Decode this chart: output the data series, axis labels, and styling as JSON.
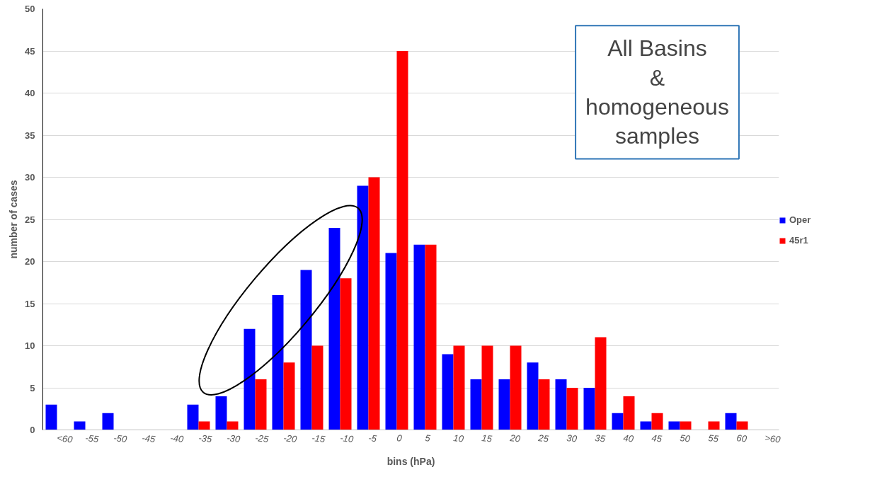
{
  "chart_data": {
    "type": "bar",
    "xlabel": "bins (hPa)",
    "ylabel": "number of cases",
    "categories": [
      "<60",
      "-55",
      "-50",
      "-45",
      "-40",
      "-35",
      "-30",
      "-25",
      "-20",
      "-15",
      "-10",
      "-5",
      "0",
      "5",
      "10",
      "15",
      "20",
      "25",
      "30",
      "35",
      "40",
      "45",
      "50",
      "55",
      "60",
      ">60"
    ],
    "series": [
      {
        "name": "Oper",
        "color": "#0000ff",
        "values": [
          3,
          1,
          2,
          0,
          0,
          3,
          4,
          12,
          16,
          19,
          24,
          29,
          21,
          22,
          9,
          6,
          6,
          8,
          6,
          5,
          2,
          1,
          1,
          0,
          2,
          0
        ]
      },
      {
        "name": "45r1",
        "color": "#ff0000",
        "values": [
          0,
          0,
          0,
          0,
          0,
          1,
          1,
          6,
          8,
          10,
          18,
          30,
          45,
          22,
          10,
          10,
          10,
          6,
          5,
          11,
          4,
          2,
          1,
          1,
          1,
          0
        ]
      }
    ],
    "ylim": [
      0,
      50
    ],
    "yticks": [
      0,
      5,
      10,
      15,
      20,
      25,
      30,
      35,
      40,
      45,
      50
    ],
    "grid": "y",
    "legend": "right",
    "annotations": [
      "All Basins\n&\nhomogeneous\nsamples"
    ]
  }
}
